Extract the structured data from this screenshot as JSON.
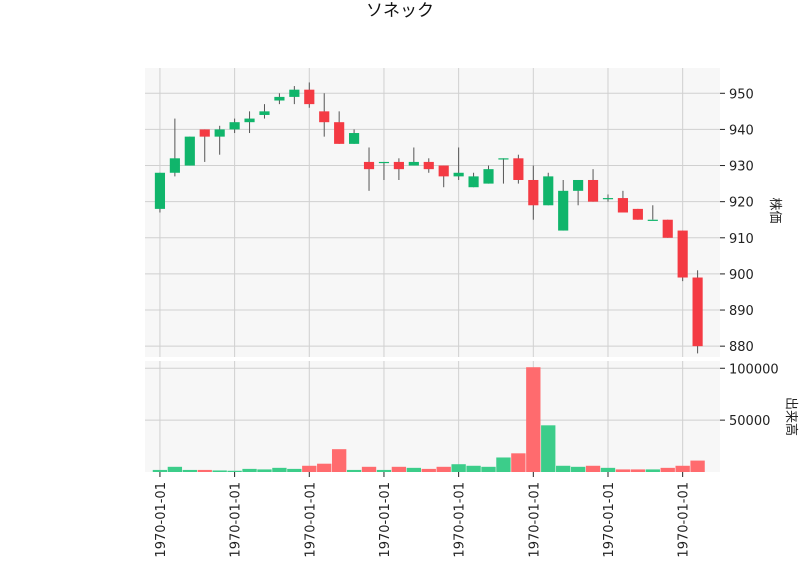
{
  "chart_data": {
    "type": "candlestick",
    "title": "ソネック",
    "colors": {
      "up": "#10b56b",
      "down": "#f43a43",
      "volume_up": "#3ccd8a",
      "volume_down": "#ff6b6e",
      "panel_bg": "#f7f7f7",
      "grid": "#d0d0d0"
    },
    "price_panel": {
      "ylabel": "株価",
      "ylim": [
        877,
        957
      ],
      "yticks": [
        880,
        890,
        900,
        910,
        920,
        930,
        940,
        950
      ]
    },
    "volume_panel": {
      "ylabel": "出来高",
      "ylim": [
        0,
        107000
      ],
      "yticks": [
        50000,
        100000
      ],
      "ytick_labels": [
        "50000",
        "100000"
      ]
    },
    "x_tick_labels": [
      "1970-01-01",
      "1970-01-01",
      "1970-01-01",
      "1970-01-01",
      "1970-01-01",
      "1970-01-01",
      "1970-01-01",
      "1970-01-01"
    ],
    "x_tick_positions": [
      0,
      5,
      10,
      15,
      20,
      25,
      30,
      35
    ],
    "grid": true,
    "candles": [
      {
        "open": 918,
        "high": 928,
        "low": 917,
        "close": 928,
        "volume": 2000
      },
      {
        "open": 928,
        "high": 943,
        "low": 927,
        "close": 932,
        "volume": 5000
      },
      {
        "open": 930,
        "high": 938,
        "low": 930,
        "close": 938,
        "volume": 2000
      },
      {
        "open": 940,
        "high": 940,
        "low": 931,
        "close": 938,
        "volume": 2000
      },
      {
        "open": 938,
        "high": 941,
        "low": 933,
        "close": 940,
        "volume": 1500
      },
      {
        "open": 940,
        "high": 943,
        "low": 939,
        "close": 942,
        "volume": 1200
      },
      {
        "open": 942,
        "high": 945,
        "low": 939,
        "close": 943,
        "volume": 3000
      },
      {
        "open": 944,
        "high": 947,
        "low": 943,
        "close": 945,
        "volume": 2500
      },
      {
        "open": 948,
        "high": 950,
        "low": 947,
        "close": 949,
        "volume": 4000
      },
      {
        "open": 949,
        "high": 952,
        "low": 947,
        "close": 951,
        "volume": 3000
      },
      {
        "open": 951,
        "high": 953,
        "low": 946,
        "close": 947,
        "volume": 6000
      },
      {
        "open": 945,
        "high": 950,
        "low": 938,
        "close": 942,
        "volume": 8000
      },
      {
        "open": 942,
        "high": 945,
        "low": 936,
        "close": 936,
        "volume": 22000
      },
      {
        "open": 936,
        "high": 940,
        "low": 936,
        "close": 939,
        "volume": 2000
      },
      {
        "open": 931,
        "high": 935,
        "low": 923,
        "close": 929,
        "volume": 5000
      },
      {
        "open": 931,
        "high": 931,
        "low": 926,
        "close": 931,
        "volume": 2000
      },
      {
        "open": 931,
        "high": 932,
        "low": 926,
        "close": 929,
        "volume": 5000
      },
      {
        "open": 930,
        "high": 935,
        "low": 930,
        "close": 931,
        "volume": 4000
      },
      {
        "open": 931,
        "high": 932,
        "low": 928,
        "close": 929,
        "volume": 3000
      },
      {
        "open": 930,
        "high": 930,
        "low": 924,
        "close": 927,
        "volume": 5000
      },
      {
        "open": 927,
        "high": 935,
        "low": 926,
        "close": 928,
        "volume": 7500
      },
      {
        "open": 924,
        "high": 928,
        "low": 924,
        "close": 927,
        "volume": 6000
      },
      {
        "open": 925,
        "high": 930,
        "low": 925,
        "close": 929,
        "volume": 5000
      },
      {
        "open": 932,
        "high": 932,
        "low": 925,
        "close": 932,
        "volume": 14000
      },
      {
        "open": 932,
        "high": 933,
        "low": 925,
        "close": 926,
        "volume": 18000
      },
      {
        "open": 926,
        "high": 930,
        "low": 915,
        "close": 919,
        "volume": 101000
      },
      {
        "open": 919,
        "high": 928,
        "low": 919,
        "close": 927,
        "volume": 45000
      },
      {
        "open": 912,
        "high": 926,
        "low": 912,
        "close": 923,
        "volume": 6000
      },
      {
        "open": 923,
        "high": 926,
        "low": 919,
        "close": 926,
        "volume": 5000
      },
      {
        "open": 926,
        "high": 929,
        "low": 920,
        "close": 920,
        "volume": 6000
      },
      {
        "open": 921,
        "high": 922,
        "low": 920,
        "close": 921,
        "volume": 4000
      },
      {
        "open": 921,
        "high": 923,
        "low": 917,
        "close": 917,
        "volume": 2500
      },
      {
        "open": 918,
        "high": 918,
        "low": 915,
        "close": 915,
        "volume": 2500
      },
      {
        "open": 915,
        "high": 919,
        "low": 915,
        "close": 915,
        "volume": 2500
      },
      {
        "open": 915,
        "high": 915,
        "low": 910,
        "close": 910,
        "volume": 4000
      },
      {
        "open": 912,
        "high": 912,
        "low": 898,
        "close": 899,
        "volume": 6000
      },
      {
        "open": 899,
        "high": 901,
        "low": 878,
        "close": 880,
        "volume": 11000
      }
    ]
  }
}
